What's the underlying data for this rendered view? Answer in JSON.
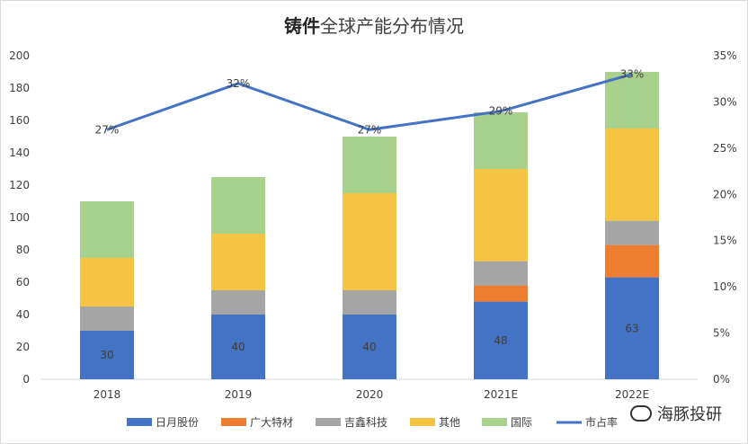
{
  "chart_data": {
    "type": "bar",
    "title_bold": "铸件",
    "title_rest": "全球产能分布情况",
    "categories": [
      "2018",
      "2019",
      "2020",
      "2021E",
      "2022E"
    ],
    "series": [
      {
        "name": "日月股份",
        "values": [
          30,
          40,
          40,
          48,
          63
        ],
        "color": "#4472C4"
      },
      {
        "name": "广大特材",
        "values": [
          0,
          0,
          0,
          10,
          20
        ],
        "color": "#ED7D31"
      },
      {
        "name": "吉鑫科技",
        "values": [
          15,
          15,
          15,
          15,
          15
        ],
        "color": "#A5A5A5"
      },
      {
        "name": "其他",
        "values": [
          30,
          35,
          60,
          57,
          57
        ],
        "color": "#F6C443"
      },
      {
        "name": "国际",
        "values": [
          35,
          35,
          35,
          35,
          35
        ],
        "color": "#A9D18E"
      }
    ],
    "bar_data_labels": [
      "30",
      "40",
      "40",
      "48",
      "63"
    ],
    "line": {
      "name": "市占率",
      "values": [
        0.27,
        0.32,
        0.27,
        0.29,
        0.33
      ],
      "labels": [
        "27%",
        "32%",
        "27%",
        "29%",
        "33%"
      ],
      "color": "#4472C4"
    },
    "y_left": {
      "min": 0,
      "max": 200,
      "step": 20,
      "ticks": [
        "0",
        "20",
        "40",
        "60",
        "80",
        "100",
        "120",
        "140",
        "160",
        "180",
        "200"
      ]
    },
    "y_right": {
      "min": 0,
      "max": 0.35,
      "step": 0.05,
      "ticks": [
        "0%",
        "5%",
        "10%",
        "15%",
        "20%",
        "25%",
        "30%",
        "35%"
      ]
    },
    "grid": false,
    "legend_position": "bottom"
  },
  "watermark": "海豚投研"
}
